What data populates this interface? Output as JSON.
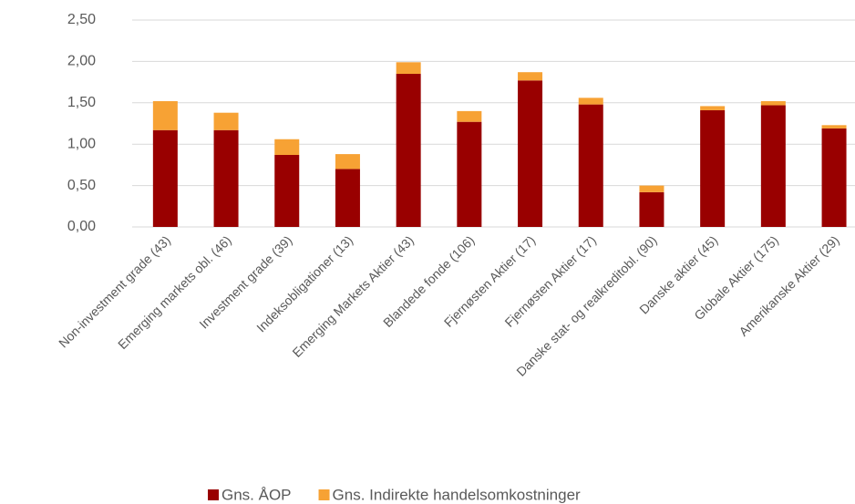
{
  "chart_data": {
    "type": "stacked_bar",
    "categories": [
      "Non-investment grade (43)",
      "Emerging markets obl. (46)",
      "Investment grade (39)",
      "Indeksobligationer (13)",
      "Emerging Markets Aktier (43)",
      "Blandede fonde (106)",
      "Fjernøsten Aktier (17)",
      "Fjernøsten Aktier (17)",
      "Danske stat- og realkreditobl. (90)",
      "Danske aktier (45)",
      "Globale Aktier (175)",
      "Amerikanske Aktier (29)"
    ],
    "series": [
      {
        "name": "Gns. ÅOP",
        "color": "#990000",
        "values": [
          1.17,
          1.17,
          0.87,
          0.7,
          1.85,
          1.27,
          1.77,
          1.48,
          0.42,
          1.41,
          1.47,
          1.19
        ]
      },
      {
        "name": "Gns. Indirekte handelsomkostninger",
        "color": "#f7a234",
        "values": [
          0.35,
          0.21,
          0.19,
          0.18,
          0.14,
          0.13,
          0.1,
          0.08,
          0.08,
          0.05,
          0.05,
          0.04
        ]
      }
    ],
    "ylim": [
      0,
      2.5
    ],
    "yticks": [
      {
        "value": 0,
        "label": "0,00"
      },
      {
        "value": 0.5,
        "label": "0,50"
      },
      {
        "value": 1,
        "label": "1,00"
      },
      {
        "value": 1.5,
        "label": "1,50"
      },
      {
        "value": 2,
        "label": "2,00"
      },
      {
        "value": 2.5,
        "label": "2,50"
      }
    ],
    "grid": true,
    "legend": "bottom"
  }
}
